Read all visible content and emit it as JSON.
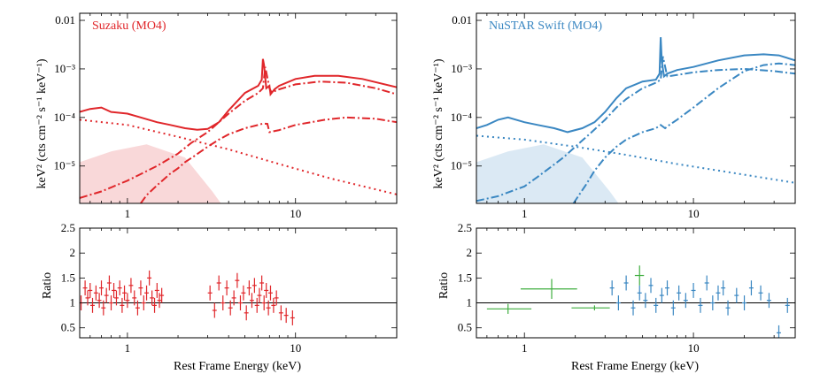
{
  "figure": {
    "x_axis_label": "Rest Frame Energy (keV)",
    "spectrum_y_label": "keV² (cts cm⁻² s⁻¹ keV⁻¹)",
    "ratio_y_label": "Ratio"
  },
  "chart_data": [
    {
      "type": "line",
      "title": "Suzaku (MO4)",
      "title_color": "#e0262a",
      "xlabel": "",
      "ylabel": "keV² (cts cm⁻² s⁻¹ keV⁻¹)",
      "x_scale": "log",
      "y_scale": "log",
      "xlim": [
        0.52,
        40
      ],
      "ylim": [
        1.7e-06,
        0.014
      ],
      "x_ticks": [
        {
          "value": 1,
          "label": "1"
        },
        {
          "value": 10,
          "label": "10"
        }
      ],
      "y_ticks": [
        {
          "value": 1e-05,
          "label": "10⁻⁵"
        },
        {
          "value": 0.0001,
          "label": "10⁻⁴"
        },
        {
          "value": 0.001,
          "label": "10⁻³"
        },
        {
          "value": 0.01,
          "label": "0.01"
        }
      ],
      "color": "#e0262a",
      "series": [
        {
          "style": "solid",
          "x": [
            0.52,
            0.6,
            0.7,
            0.8,
            1.0,
            1.2,
            1.5,
            1.8,
            2.2,
            2.6,
            3.0,
            3.5,
            4.0,
            5.0,
            6.0,
            6.3,
            6.4,
            6.5,
            6.7,
            7.0,
            7.1,
            7.5,
            8.0,
            10,
            13,
            18,
            25,
            40
          ],
          "y": [
            0.00013,
            0.00015,
            0.00016,
            0.00013,
            0.00012,
            0.0001,
            8e-05,
            7e-05,
            6e-05,
            5.6e-05,
            5.8e-05,
            8e-05,
            0.00014,
            0.00032,
            0.00045,
            0.0006,
            0.0016,
            0.0012,
            0.0004,
            0.00045,
            0.0003,
            0.00038,
            0.00045,
            0.00062,
            0.00072,
            0.00072,
            0.00062,
            0.00042
          ]
        },
        {
          "style": "dashdot",
          "x": [
            0.52,
            0.7,
            1.0,
            1.5,
            2.0,
            2.4,
            3.0,
            3.5,
            4.0,
            5.0,
            6.0,
            6.4,
            6.6,
            7.0,
            7.2,
            8.0,
            10,
            14,
            20,
            30,
            40
          ],
          "y": [
            2.2e-06,
            3e-06,
            5e-06,
            1e-05,
            1.8e-05,
            3e-05,
            5e-05,
            8e-05,
            0.00012,
            0.00022,
            0.00032,
            0.0004,
            0.0011,
            0.0004,
            0.00033,
            0.00038,
            0.00048,
            0.00055,
            0.00052,
            0.0004,
            0.0003
          ]
        },
        {
          "style": "dashdot",
          "x": [
            1.2,
            1.3,
            1.5,
            1.8,
            2.0,
            2.2,
            2.5,
            3.0,
            3.5,
            4.0,
            5.0,
            6.0,
            6.4,
            6.8,
            7.0,
            8.0,
            10,
            15,
            20,
            30,
            40
          ],
          "y": [
            1.7e-06,
            2.5e-06,
            4e-06,
            7e-06,
            9e-06,
            1.2e-05,
            1.6e-05,
            2.5e-05,
            3.5e-05,
            4.5e-05,
            6e-05,
            7e-05,
            7.5e-05,
            7.4e-05,
            5e-05,
            5.5e-05,
            7e-05,
            9e-05,
            0.0001,
            9.4e-05,
            8e-05
          ]
        },
        {
          "style": "dotted",
          "x": [
            0.52,
            1,
            2,
            4,
            8,
            16,
            40
          ],
          "y": [
            9e-05,
            7e-05,
            4e-05,
            2.2e-05,
            1.1e-05,
            5.6e-06,
            2.6e-06
          ]
        }
      ]
    },
    {
      "type": "scatter",
      "title": "",
      "xlabel": "Rest Frame Energy (keV)",
      "ylabel": "Ratio",
      "x_scale": "log",
      "xlim": [
        0.52,
        40
      ],
      "ylim": [
        0.3,
        2.5
      ],
      "y_ticks": [
        {
          "value": 0.5,
          "label": "0.5"
        },
        {
          "value": 1,
          "label": "1"
        },
        {
          "value": 1.5,
          "label": "1.5"
        },
        {
          "value": 2,
          "label": "2"
        },
        {
          "value": 2.5,
          "label": "2.5"
        }
      ],
      "x_ticks": [
        {
          "value": 1,
          "label": "1"
        },
        {
          "value": 10,
          "label": "10"
        }
      ],
      "reference_line": 1,
      "series": [
        {
          "color": "#e0262a",
          "x": [
            0.53,
            0.56,
            0.58,
            0.6,
            0.62,
            0.65,
            0.68,
            0.7,
            0.72,
            0.75,
            0.78,
            0.8,
            0.83,
            0.86,
            0.9,
            0.93,
            0.96,
            1.0,
            1.05,
            1.1,
            1.15,
            1.2,
            1.25,
            1.3,
            1.35,
            1.4,
            1.45,
            1.5,
            1.55,
            1.6
          ],
          "y": [
            1.0,
            1.3,
            1.1,
            1.25,
            0.95,
            1.2,
            1.05,
            1.3,
            0.9,
            1.15,
            1.4,
            1.0,
            1.25,
            1.1,
            1.3,
            0.95,
            1.2,
            1.05,
            1.35,
            1.1,
            0.9,
            1.3,
            1.0,
            1.2,
            1.5,
            1.1,
            0.95,
            1.25,
            1.05,
            1.15
          ]
        },
        {
          "color": "#e0262a",
          "x": [
            3.1,
            3.3,
            3.5,
            3.7,
            3.9,
            4.1,
            4.3,
            4.5,
            4.7,
            4.9,
            5.1,
            5.3,
            5.5,
            5.7,
            5.9,
            6.1,
            6.3,
            6.5,
            6.7,
            6.9,
            7.1,
            7.4,
            7.7,
            8.2,
            8.8,
            9.6
          ],
          "y": [
            1.2,
            0.85,
            1.4,
            1.0,
            1.3,
            0.9,
            1.1,
            1.45,
            1.0,
            1.2,
            0.8,
            1.3,
            1.05,
            1.35,
            0.95,
            1.15,
            1.4,
            1.0,
            1.25,
            0.9,
            1.2,
            0.95,
            1.1,
            0.8,
            0.75,
            0.7
          ]
        }
      ]
    },
    {
      "type": "line",
      "title": "NuSTAR Swift (MO4)",
      "title_color": "#3a87c2",
      "xlabel": "",
      "ylabel": "keV² (cts cm⁻² s⁻¹ keV⁻¹)",
      "x_scale": "log",
      "y_scale": "log",
      "xlim": [
        0.52,
        40
      ],
      "ylim": [
        1.7e-06,
        0.014
      ],
      "x_ticks": [
        {
          "value": 1,
          "label": "1"
        },
        {
          "value": 10,
          "label": "10"
        }
      ],
      "y_ticks": [
        {
          "value": 1e-05,
          "label": "10⁻⁵"
        },
        {
          "value": 0.0001,
          "label": "10⁻⁴"
        },
        {
          "value": 0.001,
          "label": "10⁻³"
        },
        {
          "value": 0.01,
          "label": "0.01"
        }
      ],
      "color": "#3a87c2",
      "series": [
        {
          "style": "solid",
          "x": [
            0.52,
            0.6,
            0.7,
            0.8,
            1.0,
            1.2,
            1.5,
            1.8,
            2.2,
            2.6,
            3.0,
            3.5,
            4.0,
            5.0,
            6.0,
            6.3,
            6.4,
            6.5,
            6.7,
            7.0,
            8.0,
            10,
            14,
            20,
            26,
            32,
            40
          ],
          "y": [
            6e-05,
            7e-05,
            9e-05,
            0.0001,
            8e-05,
            7e-05,
            6e-05,
            5e-05,
            6e-05,
            8e-05,
            0.00013,
            0.00025,
            0.0004,
            0.00055,
            0.0006,
            0.0008,
            0.0045,
            0.0014,
            0.0007,
            0.0008,
            0.00095,
            0.0011,
            0.0015,
            0.0019,
            0.002,
            0.0019,
            0.0015
          ]
        },
        {
          "style": "dashdot",
          "x": [
            0.52,
            0.7,
            1.0,
            1.2,
            1.4,
            1.7,
            2.0,
            2.5,
            3.0,
            3.5,
            4.0,
            5.0,
            6.0,
            6.4,
            6.6,
            7.0,
            8.0,
            10,
            14,
            20,
            30,
            40
          ],
          "y": [
            1.9e-06,
            2.4e-06,
            3.8e-06,
            6e-06,
            9e-06,
            1.5e-05,
            2.5e-05,
            5e-05,
            9e-05,
            0.00016,
            0.00024,
            0.0004,
            0.00052,
            0.0006,
            0.0018,
            0.0007,
            0.00075,
            0.00085,
            0.00095,
            0.001,
            0.0009,
            0.0008
          ]
        },
        {
          "style": "dashdot",
          "x": [
            1.95,
            2.1,
            2.3,
            2.6,
            3.0,
            3.5,
            4.0,
            5.0,
            6.0,
            6.4,
            6.8,
            7.2,
            8.0,
            10,
            14,
            20,
            26,
            32,
            40
          ],
          "y": [
            1.7e-06,
            2.5e-06,
            4e-06,
            8e-06,
            1.5e-05,
            2.5e-05,
            3.5e-05,
            5e-05,
            6e-05,
            7e-05,
            6e-05,
            7e-05,
            9e-05,
            0.00016,
            0.0004,
            0.0009,
            0.0012,
            0.0013,
            0.0012
          ]
        },
        {
          "style": "dotted",
          "x": [
            0.52,
            1,
            2,
            4,
            8,
            16,
            40
          ],
          "y": [
            4.2e-05,
            3.5e-05,
            2.5e-05,
            1.7e-05,
            1.1e-05,
            7.5e-06,
            4.5e-06
          ]
        }
      ]
    },
    {
      "type": "scatter",
      "title": "",
      "xlabel": "Rest Frame Energy (keV)",
      "ylabel": "Ratio",
      "x_scale": "log",
      "xlim": [
        0.52,
        40
      ],
      "ylim": [
        0.3,
        2.5
      ],
      "y_ticks": [
        {
          "value": 0.5,
          "label": "0.5"
        },
        {
          "value": 1,
          "label": "1"
        },
        {
          "value": 1.5,
          "label": "1.5"
        },
        {
          "value": 2,
          "label": "2"
        },
        {
          "value": 2.5,
          "label": "2.5"
        }
      ],
      "x_ticks": [
        {
          "value": 1,
          "label": "1"
        },
        {
          "value": 10,
          "label": "10"
        }
      ],
      "reference_line": 1,
      "series": [
        {
          "color": "#3fae3f",
          "x": [
            0.8,
            1.45,
            2.6,
            4.8
          ],
          "xerr": [
            [
              0.2,
              0.3
            ],
            [
              0.5,
              0.6
            ],
            [
              0.7,
              0.6
            ],
            [
              0.3,
              0.3
            ]
          ],
          "y": [
            0.88,
            1.28,
            0.9,
            1.55
          ],
          "yerr": [
            0.1,
            0.2,
            0.05,
            0.2
          ]
        },
        {
          "color": "#3a87c2",
          "x": [
            3.3,
            3.6,
            4.0,
            4.4,
            4.8,
            5.2,
            5.6,
            6.0,
            6.5,
            7.0,
            7.6,
            8.2,
            9.0,
            10,
            11,
            12,
            13,
            14,
            15,
            16,
            18,
            20,
            22,
            25,
            28,
            32,
            36
          ],
          "y": [
            1.3,
            1.0,
            1.4,
            0.9,
            1.2,
            1.05,
            1.35,
            0.95,
            1.15,
            1.3,
            0.9,
            1.2,
            1.05,
            1.25,
            0.95,
            1.4,
            1.0,
            1.2,
            1.3,
            0.9,
            1.15,
            1.0,
            1.3,
            1.2,
            1.05,
            0.4,
            0.95
          ]
        }
      ]
    }
  ]
}
